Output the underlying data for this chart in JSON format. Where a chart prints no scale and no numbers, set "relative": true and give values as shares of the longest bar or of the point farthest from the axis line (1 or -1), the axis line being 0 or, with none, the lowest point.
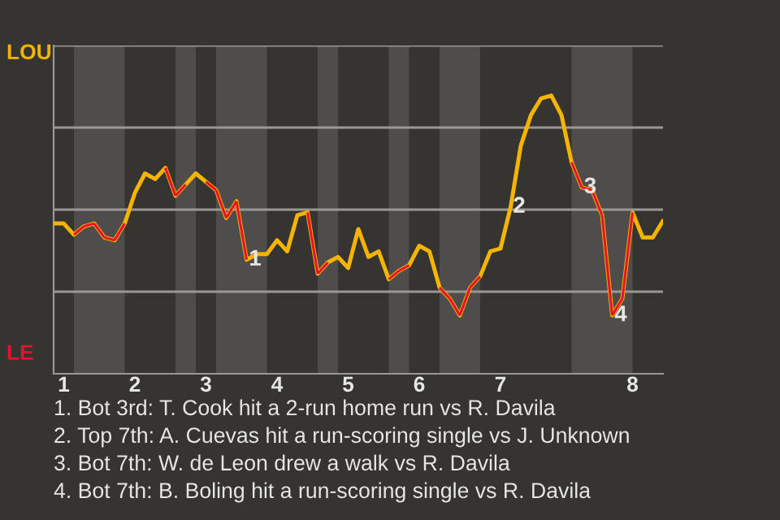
{
  "chart_data": {
    "type": "line",
    "relative": true,
    "categories": [
      null,
      "1",
      null,
      null,
      null,
      null,
      null,
      null,
      "2",
      null,
      null,
      null,
      null,
      null,
      null,
      "3",
      null,
      null,
      null,
      null,
      null,
      null,
      "4",
      null,
      null,
      null,
      null,
      null,
      null,
      "5",
      null,
      null,
      null,
      null,
      null,
      null,
      "6",
      null,
      null,
      null,
      null,
      null,
      null,
      null,
      "7",
      null,
      null,
      null,
      null,
      null,
      null,
      null,
      null,
      null,
      null,
      null,
      null,
      "8",
      null,
      null,
      null
    ],
    "series": [
      {
        "color": "#f5b400",
        "values": [
          0.54,
          0.54,
          0.5,
          0.53,
          0.54,
          0.49,
          0.48,
          0.54,
          0.65,
          0.72,
          0.7,
          0.74,
          0.64,
          0.68,
          0.72,
          0.69,
          0.66,
          0.56,
          0.62,
          0.41,
          0.43,
          0.43,
          0.48,
          0.44,
          0.57,
          0.58,
          0.36,
          0.4,
          0.42,
          0.38,
          0.52,
          0.42,
          0.44,
          0.34,
          0.37,
          0.39,
          0.46,
          0.44,
          0.31,
          0.27,
          0.21,
          0.31,
          0.35,
          0.44,
          0.45,
          0.6,
          0.82,
          0.93,
          0.99,
          1,
          0.93,
          0.76,
          0.67,
          0.66,
          0.57,
          0.21,
          0.27,
          0.58,
          0.49,
          0.49,
          0.55
        ],
        "colors": [
          "#f5b400",
          "#f5b400",
          "#e8112d",
          "#e8112d",
          "#e8112d",
          "#e8112d",
          "#e8112d",
          "#f5b400",
          "#f5b400",
          "#f5b400",
          "#f5b400",
          "#e8112d",
          "#e8112d",
          "#f5b400",
          "#f5b400",
          "#e8112d",
          "#e8112d",
          "#e8112d",
          "#e8112d",
          "#f5b400",
          "#f5b400",
          "#f5b400",
          "#f5b400",
          "#f5b400",
          "#f5b400",
          "#e8112d",
          "#e8112d",
          "#f5b400",
          "#f5b400",
          "#f5b400",
          "#f5b400",
          "#f5b400",
          "#f5b400",
          "#e8112d",
          "#e8112d",
          "#f5b400",
          "#f5b400",
          "#f5b400",
          "#e8112d",
          "#e8112d",
          "#e8112d",
          "#e8112d",
          "#f5b400",
          "#f5b400",
          "#f5b400",
          "#f5b400",
          "#f5b400",
          "#f5b400",
          "#f5b400",
          "#f5b400",
          "#f5b400",
          "#e8112d",
          "#e8112d",
          "#e8112d",
          "#e8112d",
          "#e8112d",
          "#e8112d",
          "#f5b400",
          "#f5b400",
          "#f5b400",
          "#f5b400"
        ]
      }
    ],
    "grid": "y",
    "annotations": [
      {
        "text": "1",
        "y": 0.41
      },
      {
        "text": "2",
        "y": 0.6
      },
      {
        "text": "3",
        "y": 0.67
      },
      {
        "text": "4",
        "y": 0.21
      },
      "LOU",
      "LE",
      "1. Bot 3rd: T. Cook hit a 2-run home run vs R. Davila",
      "2. Top 7th: A. Cuevas hit a run-scoring single vs J. Unknown",
      "3. Bot 7th: W. de Leon drew a walk vs R. Davila",
      "4. Bot 7th: B. Boling hit a run-scoring single vs R. Davila"
    ]
  }
}
